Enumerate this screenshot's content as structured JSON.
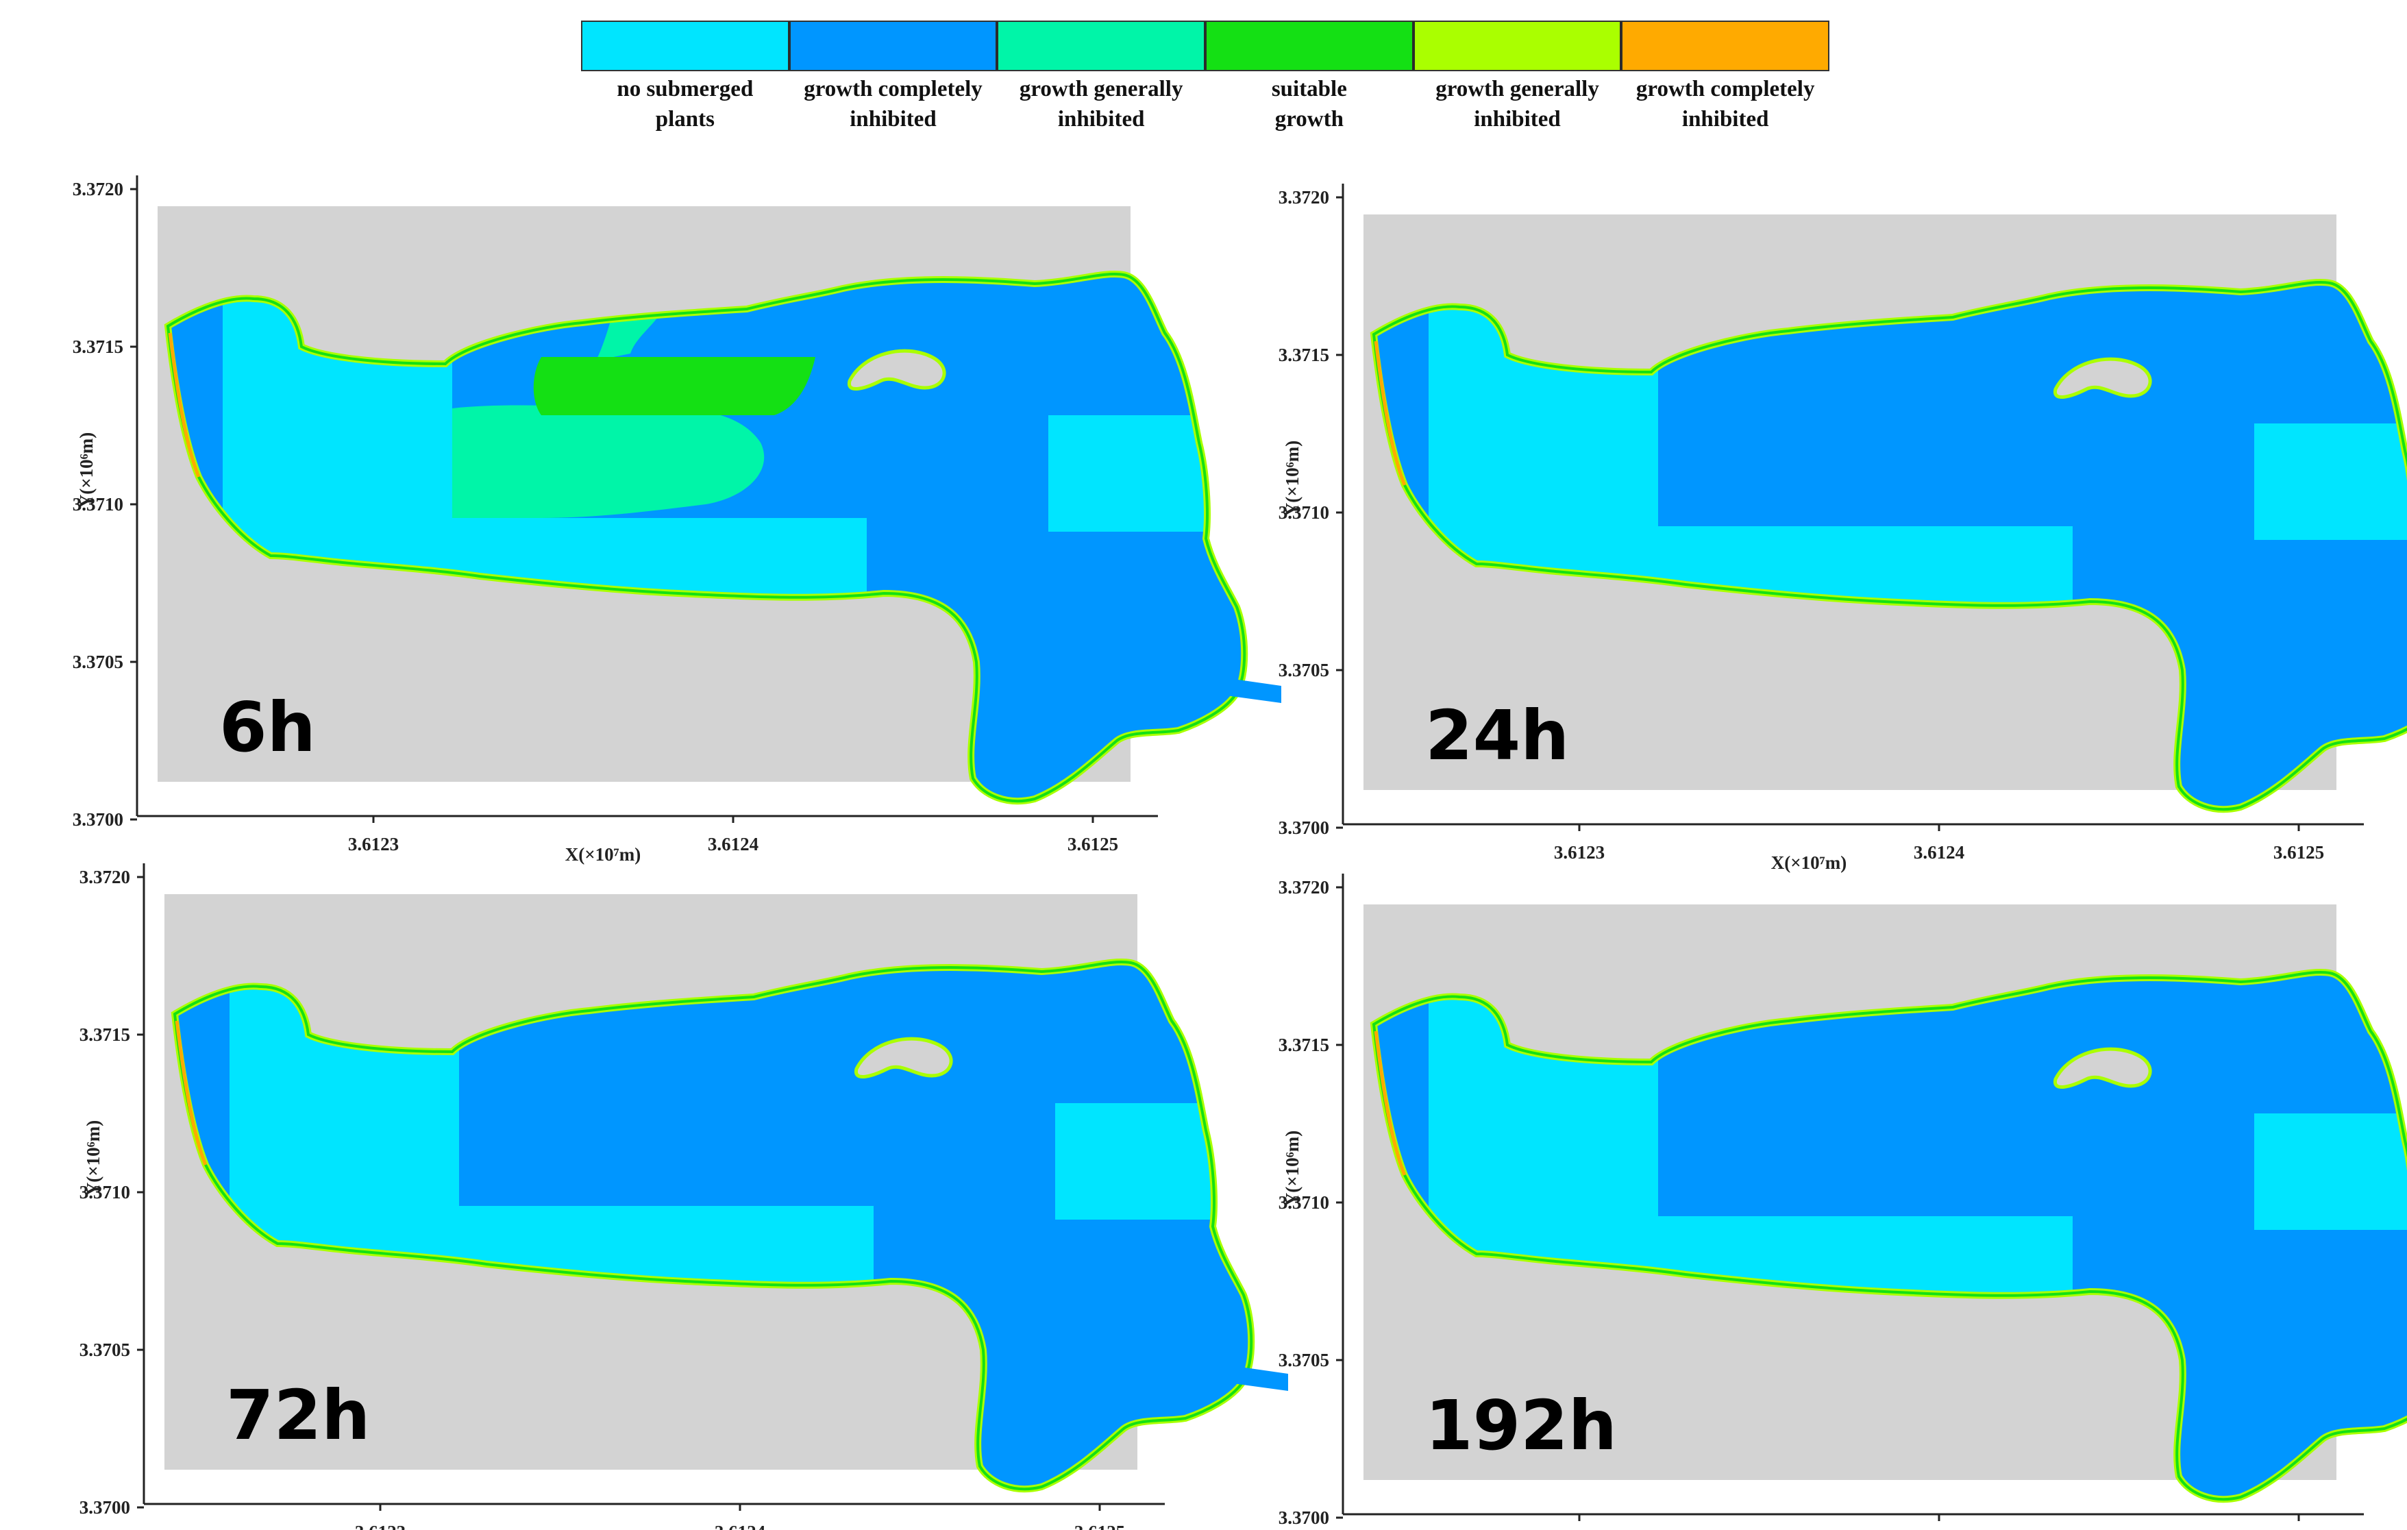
{
  "legend": {
    "items": [
      {
        "label": "no submerged\nplants",
        "color": "#00e5ff"
      },
      {
        "label": "growth completely\ninhibited",
        "color": "#0096ff"
      },
      {
        "label": "growth generally\ninhibited",
        "color": "#00f5a8"
      },
      {
        "label": "suitable\ngrowth",
        "color": "#14e014"
      },
      {
        "label": "growth generally\ninhibited",
        "color": "#aaff00"
      },
      {
        "label": "growth completely\ninhibited",
        "color": "#ffaa00"
      }
    ]
  },
  "map_background": "#d3d3d3",
  "axes": {
    "x_title": "X(×10⁷m)",
    "y_title": "Y(×10⁶m)",
    "x_ticks": [
      "3.6123",
      "3.6124",
      "3.6125"
    ],
    "y_ticks": [
      "3.3720",
      "3.3715",
      "3.3710",
      "3.3705",
      "3.3700"
    ]
  },
  "panels": [
    {
      "id": "6h",
      "time_label": "6h",
      "zones": [
        "no-submerged",
        "inhibited",
        "generally-inhibited",
        "suitable"
      ]
    },
    {
      "id": "24h",
      "time_label": "24h",
      "zones": [
        "no-submerged",
        "inhibited"
      ]
    },
    {
      "id": "72h",
      "time_label": "72h",
      "zones": [
        "no-submerged",
        "inhibited"
      ]
    },
    {
      "id": "192h",
      "time_label": "192h",
      "zones": [
        "no-submerged",
        "inhibited"
      ]
    }
  ]
}
